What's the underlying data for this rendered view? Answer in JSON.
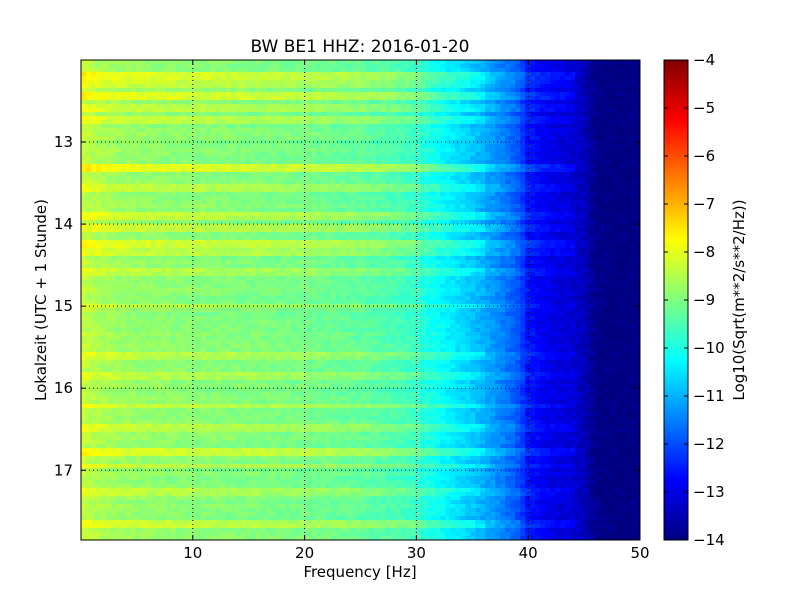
{
  "chart_data": {
    "type": "heatmap",
    "title": "BW BE1 HHZ: 2016-01-20",
    "xlabel": "Frequency [Hz]",
    "ylabel": "Lokalzeit (UTC + 1 Stunde)",
    "colorbar_label": "Log10(Sqrt(m**2/s**2/Hz))",
    "xlim": [
      0,
      50
    ],
    "ylim": [
      17.85,
      12.0
    ],
    "clim": [
      -14,
      -4
    ],
    "colormap": "jet",
    "grid": true,
    "x_ticks": [
      {
        "value": 10,
        "label": "10"
      },
      {
        "value": 20,
        "label": "20"
      },
      {
        "value": 30,
        "label": "30"
      },
      {
        "value": 40,
        "label": "40"
      },
      {
        "value": 50,
        "label": "50"
      }
    ],
    "y_ticks": [
      {
        "value": 13,
        "label": "13"
      },
      {
        "value": 14,
        "label": "14"
      },
      {
        "value": 15,
        "label": "15"
      },
      {
        "value": 16,
        "label": "16"
      },
      {
        "value": 17,
        "label": "17"
      }
    ],
    "colorbar_ticks": [
      {
        "value": -4,
        "label": "−4"
      },
      {
        "value": -5,
        "label": "−5"
      },
      {
        "value": -6,
        "label": "−6"
      },
      {
        "value": -7,
        "label": "−7"
      },
      {
        "value": -8,
        "label": "−8"
      },
      {
        "value": -9,
        "label": "−9"
      },
      {
        "value": -10,
        "label": "−10"
      },
      {
        "value": -11,
        "label": "−11"
      },
      {
        "value": -12,
        "label": "−12"
      },
      {
        "value": -13,
        "label": "−13"
      },
      {
        "value": -14,
        "label": "−14"
      }
    ],
    "frequency_profile": {
      "frequency_hz": [
        0,
        1,
        3,
        5,
        10,
        15,
        20,
        25,
        28,
        30,
        31,
        33,
        35,
        37,
        39,
        40,
        42,
        44,
        45,
        46,
        47,
        50
      ],
      "log10_psd": [
        -8.3,
        -8.5,
        -8.7,
        -8.8,
        -8.9,
        -9.0,
        -9.1,
        -9.3,
        -9.5,
        -9.7,
        -10.0,
        -10.4,
        -10.8,
        -11.3,
        -11.9,
        -12.6,
        -13.0,
        -13.2,
        -13.4,
        -13.9,
        -14.0,
        -14.0
      ]
    },
    "noise_bands": [
      {
        "time": 12.2,
        "strength": 1.2
      },
      {
        "time": 12.3,
        "strength": 1.0
      },
      {
        "time": 12.42,
        "strength": 1.3
      },
      {
        "time": 12.6,
        "strength": 0.8
      },
      {
        "time": 12.75,
        "strength": 0.9
      },
      {
        "time": 13.3,
        "strength": 1.4
      },
      {
        "time": 13.55,
        "strength": 0.9
      },
      {
        "time": 13.9,
        "strength": 1.0
      },
      {
        "time": 14.05,
        "strength": 0.8
      },
      {
        "time": 14.25,
        "strength": 1.1
      },
      {
        "time": 14.35,
        "strength": 0.9
      },
      {
        "time": 14.6,
        "strength": 0.7
      },
      {
        "time": 15.0,
        "strength": 0.8
      },
      {
        "time": 15.6,
        "strength": 0.8
      },
      {
        "time": 15.85,
        "strength": 0.7
      },
      {
        "time": 16.22,
        "strength": 1.1
      },
      {
        "time": 16.48,
        "strength": 0.8
      },
      {
        "time": 16.78,
        "strength": 1.2
      },
      {
        "time": 16.95,
        "strength": 0.8
      },
      {
        "time": 17.25,
        "strength": 0.7
      },
      {
        "time": 17.65,
        "strength": 1.0
      }
    ]
  }
}
